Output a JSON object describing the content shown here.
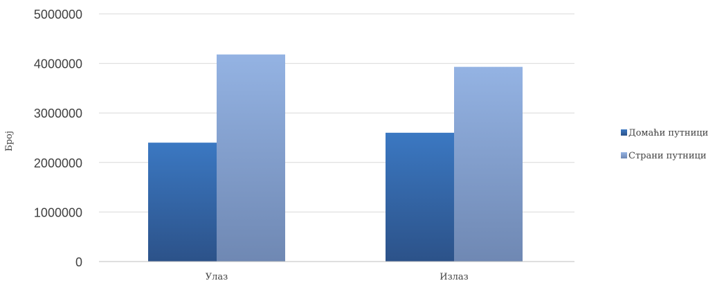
{
  "chart_data": {
    "type": "bar",
    "title": "",
    "xlabel": "",
    "ylabel": "Број",
    "categories": [
      "Улаз",
      "Излаз"
    ],
    "series": [
      {
        "name": "Домаћи путници",
        "values": [
          2400000,
          2600000
        ],
        "color_top": "#3b78c2",
        "color_bottom": "#2c5289"
      },
      {
        "name": "Страни путници",
        "values": [
          4180000,
          3930000
        ],
        "color_top": "#94b3e3",
        "color_bottom": "#6f88b3"
      }
    ],
    "ylim": [
      0,
      5000000
    ],
    "yticks": [
      "0",
      "1000000",
      "2000000",
      "3000000",
      "4000000",
      "5000000"
    ],
    "grid": true,
    "legend_position": "right"
  }
}
